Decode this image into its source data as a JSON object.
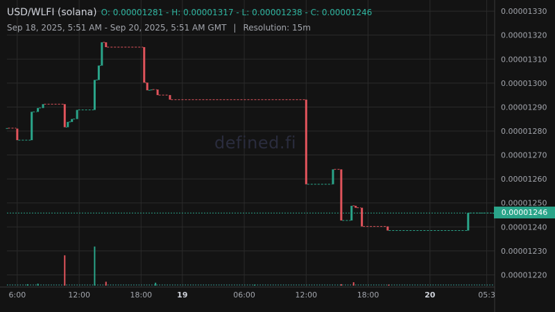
{
  "header": {
    "symbol": "USD/WLFI (solana)",
    "ohlc": "O: 0.00001281 - H: 0.00001317 - L: 0.00001238 - C: 0.00001246",
    "range": "Sep 18, 2025, 5:51 AM - Sep 20, 2025, 5:51 AM GMT",
    "separator": "|",
    "resolution": "Resolution: 15m"
  },
  "watermark": "defined.fi",
  "colors": {
    "background": "#131313",
    "up": "#2aa58a",
    "down": "#e2545c",
    "grid": "#2b2b2b",
    "text": "#a3a6ad",
    "last_price_bg": "#2aa58a"
  },
  "chart_data": {
    "type": "candlestick",
    "ylim": [
      1.2155e-05,
      1.3335e-05
    ],
    "y_ticks": [
      "0.00001330",
      "0.00001320",
      "0.00001310",
      "0.00001300",
      "0.00001290",
      "0.00001280",
      "0.00001270",
      "0.00001260",
      "0.00001250",
      "0.00001240",
      "0.00001230",
      "0.00001220"
    ],
    "y_tick_values": [
      1.33e-05,
      1.32e-05,
      1.31e-05,
      1.3e-05,
      1.29e-05,
      1.28e-05,
      1.27e-05,
      1.26e-05,
      1.25e-05,
      1.24e-05,
      1.23e-05,
      1.22e-05
    ],
    "x_ticks": [
      {
        "label": "6:00",
        "t": 9,
        "bold": false
      },
      {
        "label": "12:00",
        "t": 15,
        "bold": false
      },
      {
        "label": "18:00",
        "t": 21,
        "bold": false
      },
      {
        "label": "19",
        "t": 25,
        "bold": true
      },
      {
        "label": "06:00",
        "t": 31,
        "bold": false
      },
      {
        "label": "12:00",
        "t": 37,
        "bold": false
      },
      {
        "label": "18:00",
        "t": 43,
        "bold": false
      },
      {
        "label": "20",
        "t": 49,
        "bold": true
      },
      {
        "label": "05:3",
        "t": 54.5,
        "bold": false
      }
    ],
    "x_range_hours": [
      8.0,
      55.2
    ],
    "last_price": "0.00001246",
    "last_value": 1.2458e-05,
    "candles": [
      {
        "t": 8.0,
        "o": 1.2812e-05,
        "c": 1.2812e-05
      },
      {
        "t": 9.0,
        "o": 1.281e-05,
        "c": 1.2762e-05
      },
      {
        "t": 10.4,
        "o": 1.2762e-05,
        "c": 1.288e-05
      },
      {
        "t": 11.0,
        "o": 1.288e-05,
        "c": 1.2896e-05
      },
      {
        "t": 11.5,
        "o": 1.2896e-05,
        "c": 1.2912e-05
      },
      {
        "t": 13.6,
        "o": 1.2912e-05,
        "c": 1.2816e-05
      },
      {
        "t": 13.9,
        "o": 1.2816e-05,
        "c": 1.2838e-05
      },
      {
        "t": 14.3,
        "o": 1.2838e-05,
        "c": 1.285e-05
      },
      {
        "t": 14.8,
        "o": 1.285e-05,
        "c": 1.2888e-05
      },
      {
        "t": 16.5,
        "o": 1.2888e-05,
        "c": 1.3013e-05
      },
      {
        "t": 16.9,
        "o": 1.3013e-05,
        "c": 1.3073e-05
      },
      {
        "t": 17.2,
        "o": 1.3073e-05,
        "c": 1.317e-05
      },
      {
        "t": 17.6,
        "o": 1.317e-05,
        "c": 1.315e-05
      },
      {
        "t": 21.3,
        "o": 1.315e-05,
        "c": 1.3002e-05
      },
      {
        "t": 21.6,
        "o": 1.3002e-05,
        "c": 1.297e-05
      },
      {
        "t": 22.0,
        "o": 1.297e-05,
        "c": 1.2973e-05
      },
      {
        "t": 22.6,
        "o": 1.2973e-05,
        "c": 1.295e-05
      },
      {
        "t": 23.8,
        "o": 1.295e-05,
        "c": 1.2931e-05
      },
      {
        "t": 37.0,
        "o": 1.2931e-05,
        "c": 1.2578e-05
      },
      {
        "t": 39.6,
        "o": 1.2578e-05,
        "c": 1.264e-05
      },
      {
        "t": 40.4,
        "o": 1.264e-05,
        "c": 1.2427e-05
      },
      {
        "t": 41.4,
        "o": 1.2427e-05,
        "c": 1.2488e-05
      },
      {
        "t": 41.8,
        "o": 1.2488e-05,
        "c": 1.248e-05
      },
      {
        "t": 42.4,
        "o": 1.248e-05,
        "c": 1.2402e-05
      },
      {
        "t": 44.9,
        "o": 1.2402e-05,
        "c": 1.2385e-05
      },
      {
        "t": 52.7,
        "o": 1.2385e-05,
        "c": 1.2458e-05
      },
      {
        "t": 55.2,
        "o": 1.2458e-05,
        "c": 1.2458e-05
      }
    ],
    "volume": [
      {
        "t": 13.6,
        "v": 0.62,
        "dir": "down"
      },
      {
        "t": 16.5,
        "v": 0.8,
        "dir": "up"
      },
      {
        "t": 17.6,
        "v": 0.08,
        "dir": "down"
      },
      {
        "t": 11.0,
        "v": 0.04,
        "dir": "up"
      },
      {
        "t": 10.0,
        "v": 0.03,
        "dir": "up"
      },
      {
        "t": 22.4,
        "v": 0.06,
        "dir": "up"
      },
      {
        "t": 40.4,
        "v": 0.03,
        "dir": "down"
      },
      {
        "t": 41.6,
        "v": 0.07,
        "dir": "down"
      },
      {
        "t": 32.0,
        "v": 0.02,
        "dir": "up"
      },
      {
        "t": 45.0,
        "v": 0.02,
        "dir": "down"
      }
    ]
  }
}
